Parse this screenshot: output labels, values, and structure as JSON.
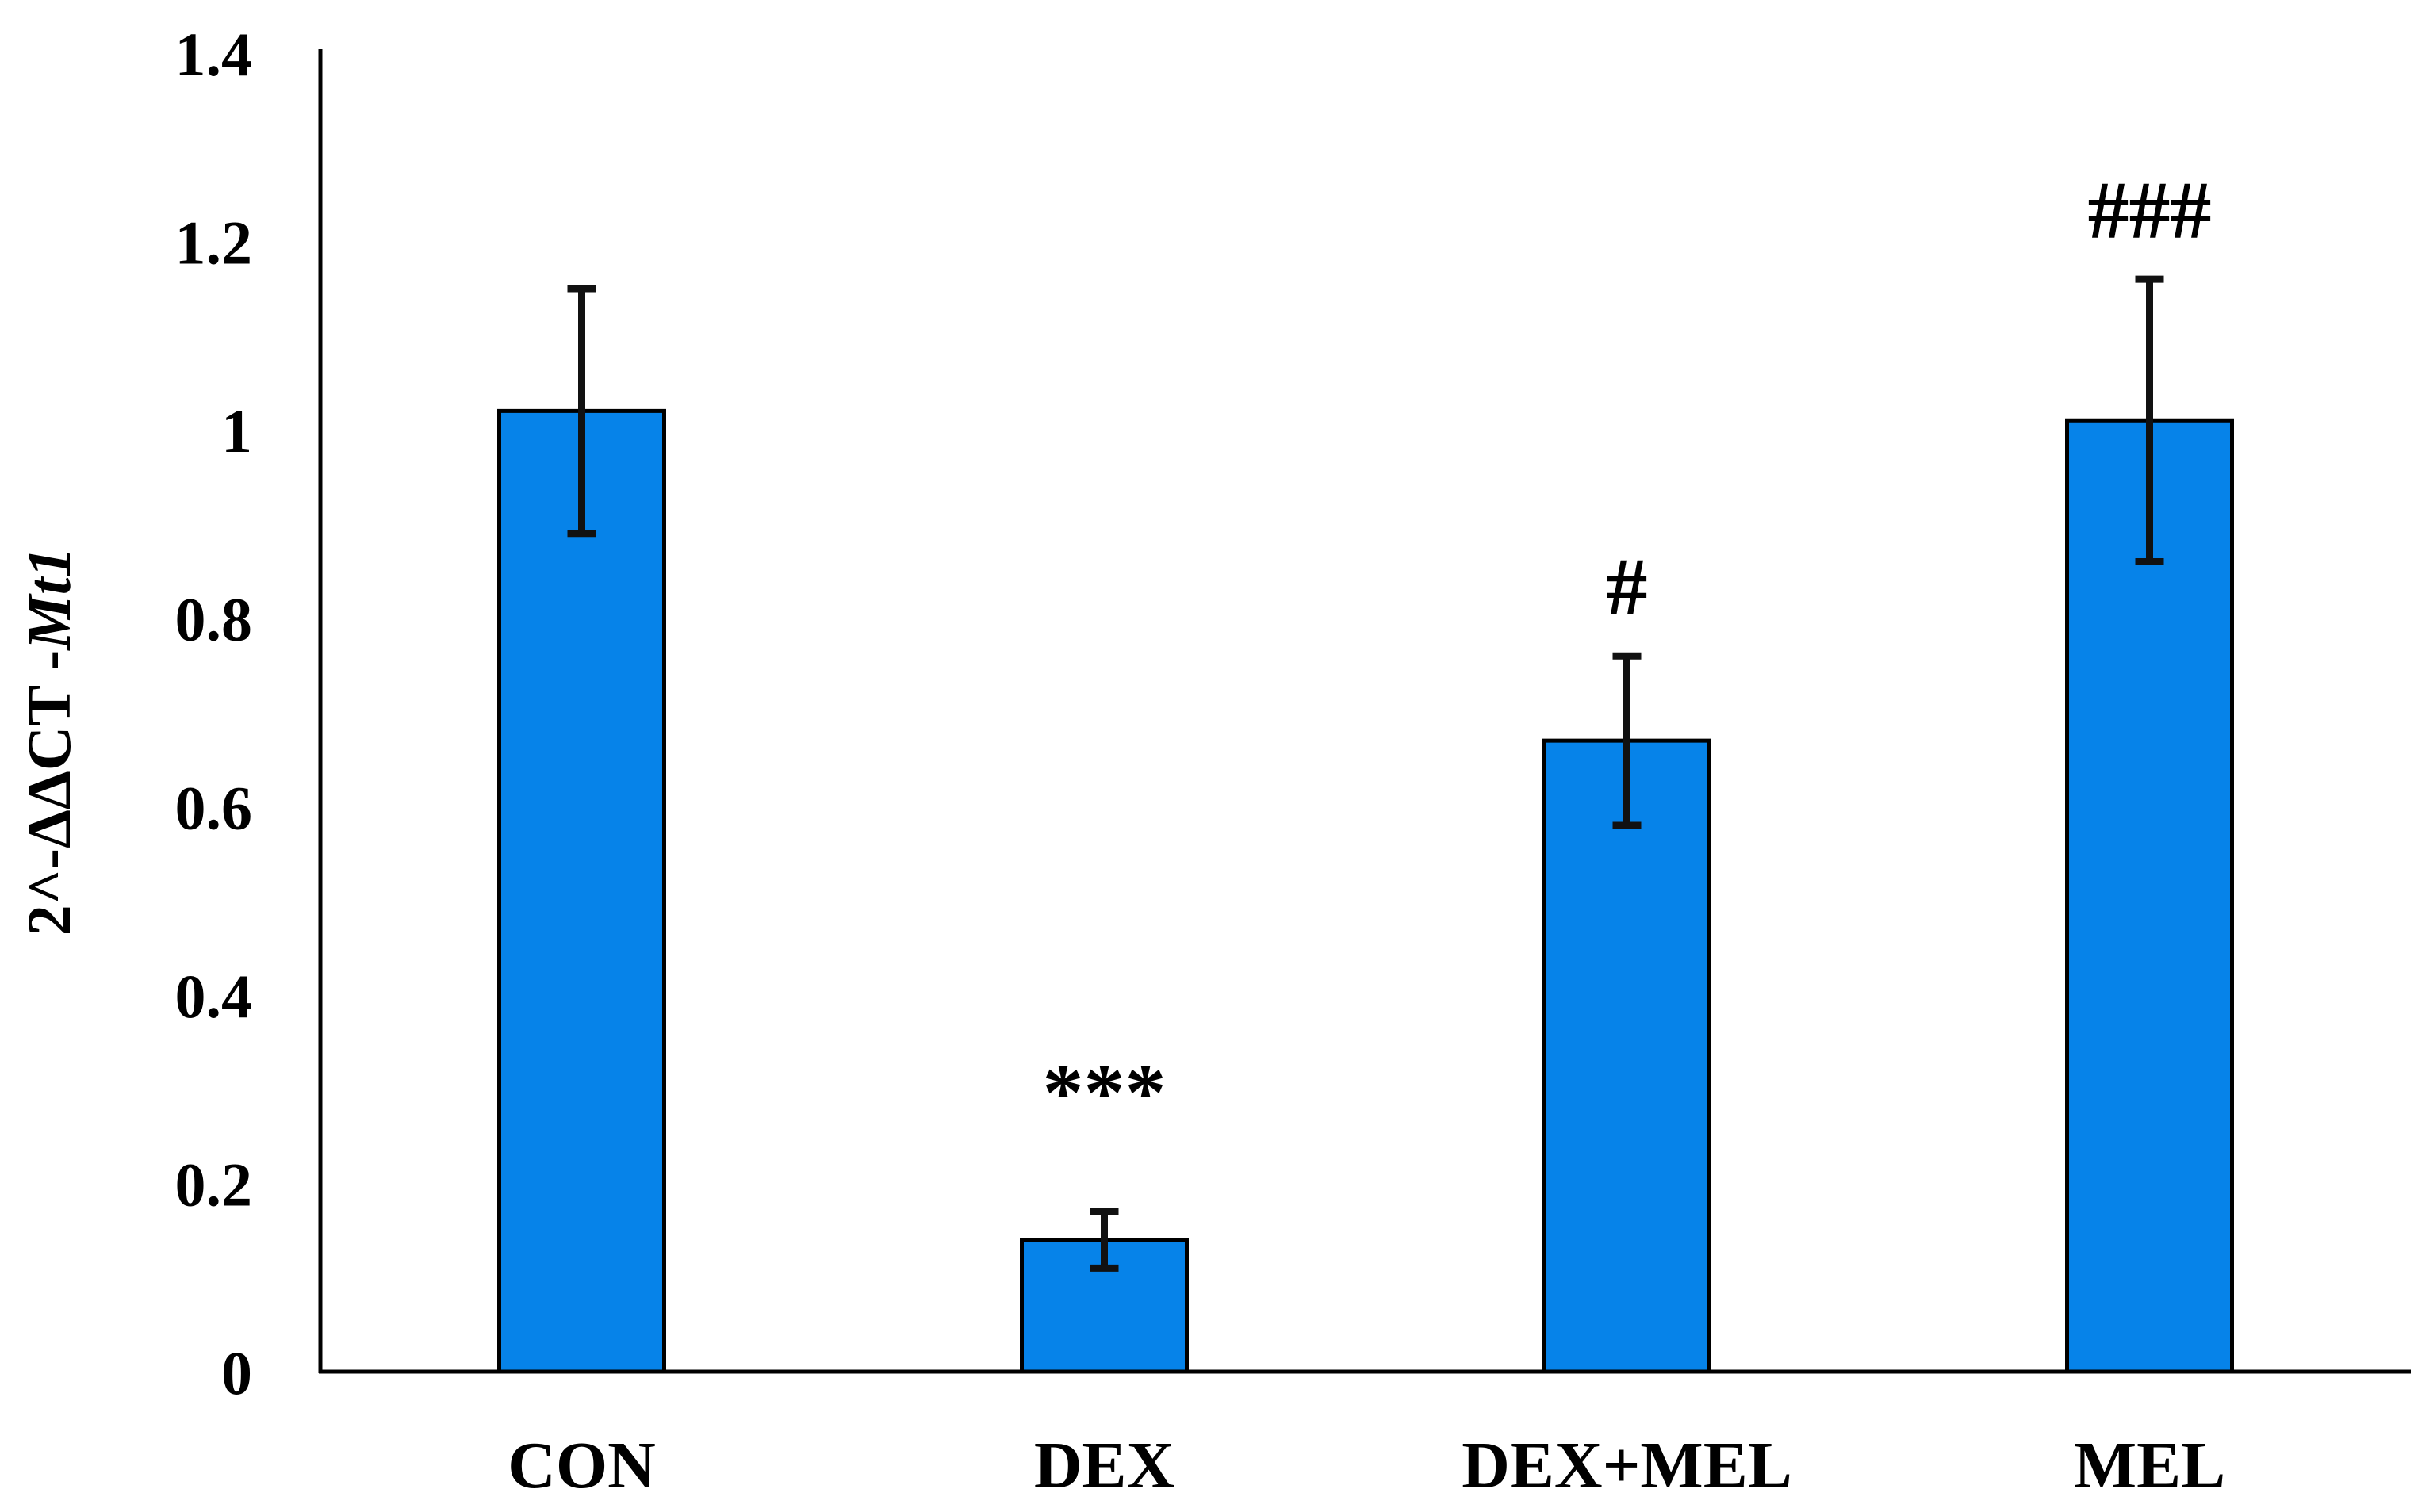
{
  "chart_data": {
    "type": "bar",
    "title": "",
    "xlabel": "",
    "ylabel": {
      "prefix": "2^-ΔΔCT -",
      "gene": "Mt1"
    },
    "categories": [
      "CON",
      "DEX",
      "DEX+MEL",
      "MEL"
    ],
    "series": [
      {
        "values": [
          1.02,
          0.14,
          0.67,
          1.01
        ],
        "error": [
          0.13,
          0.03,
          0.09,
          0.15
        ],
        "color": "#0683E9"
      }
    ],
    "annotations": [
      "",
      "***",
      "#",
      "###"
    ],
    "ylim": [
      0,
      1.4
    ],
    "yticks": [
      "0",
      "0.2",
      "0.4",
      "0.6",
      "0.8",
      "1",
      "1.2",
      "1.4"
    ],
    "grid": false,
    "legend": "none"
  }
}
